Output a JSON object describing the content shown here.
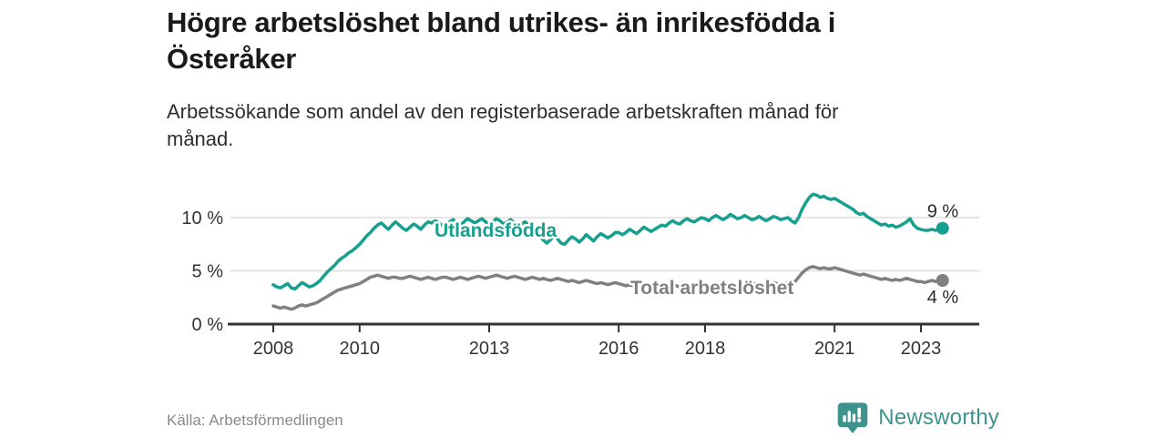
{
  "title_lines": [
    "Högre arbetslöshet bland utrikes- än inrikesfödda i",
    "Österåker"
  ],
  "subtitle_lines": [
    "Arbetssökande som andel av den registerbaserade arbetskraften månad för",
    "månad."
  ],
  "footer": {
    "source": "Källa: Arbetsförmedlingen",
    "brand": "Newsworthy",
    "logo_icon": "bar-chart-speech-bubble-icon"
  },
  "colors": {
    "accent_teal": "#17A08F",
    "series_gray": "#808080",
    "grid": "#DDDDDD",
    "axis": "#333333",
    "title_text": "#1A1A1A",
    "muted_text": "#8A8A8A",
    "brand_teal": "#3E938D"
  },
  "chart_data": {
    "type": "line",
    "x_start": "2008-01",
    "x_end": "2023-07",
    "x_interval": "monthly",
    "xticks": [
      2008,
      2010,
      2013,
      2016,
      2018,
      2021,
      2023
    ],
    "yticks": [
      {
        "value": 0,
        "label": "0 %"
      },
      {
        "value": 5,
        "label": "5 %"
      },
      {
        "value": 10,
        "label": "10 %"
      }
    ],
    "ylim": [
      0,
      12.8
    ],
    "grid": "horizontal",
    "legend": "inline-labels",
    "series": [
      {
        "name": "Utlandsfödda",
        "color": "#17A08F",
        "end_label": "9 %",
        "end_value": 9.0,
        "values": [
          3.7,
          3.5,
          3.4,
          3.6,
          3.8,
          3.4,
          3.3,
          3.6,
          3.9,
          3.7,
          3.5,
          3.6,
          3.8,
          4.1,
          4.5,
          4.9,
          5.2,
          5.5,
          5.9,
          6.2,
          6.4,
          6.7,
          6.9,
          7.2,
          7.5,
          7.9,
          8.3,
          8.6,
          9.0,
          9.3,
          9.5,
          9.2,
          8.9,
          9.3,
          9.6,
          9.3,
          9.0,
          8.8,
          9.1,
          9.4,
          9.2,
          8.9,
          9.3,
          9.6,
          9.5,
          9.7,
          9.5,
          9.3,
          9.4,
          9.6,
          9.8,
          9.5,
          9.3,
          9.6,
          9.9,
          9.7,
          9.5,
          9.7,
          9.9,
          9.6,
          9.4,
          9.6,
          9.9,
          9.7,
          9.4,
          9.6,
          9.8,
          9.5,
          9.2,
          9.4,
          9.6,
          9.3,
          9.0,
          8.7,
          8.3,
          7.9,
          7.6,
          7.9,
          8.3,
          8.0,
          7.6,
          7.5,
          7.9,
          8.2,
          8.0,
          7.7,
          8.0,
          8.4,
          8.1,
          7.8,
          8.2,
          8.5,
          8.3,
          8.1,
          8.3,
          8.6,
          8.6,
          8.4,
          8.6,
          8.9,
          8.7,
          8.5,
          8.8,
          9.1,
          8.9,
          8.7,
          8.9,
          9.1,
          9.3,
          9.2,
          9.5,
          9.7,
          9.5,
          9.4,
          9.7,
          9.9,
          9.7,
          9.6,
          9.8,
          10.0,
          9.9,
          9.7,
          10.0,
          10.2,
          10.0,
          9.8,
          10.0,
          10.3,
          10.1,
          9.9,
          10.0,
          10.2,
          10.0,
          9.8,
          9.9,
          10.1,
          9.9,
          9.7,
          9.9,
          10.1,
          10.0,
          9.8,
          9.9,
          10.0,
          9.7,
          9.5,
          10.0,
          10.8,
          11.4,
          11.9,
          12.2,
          12.1,
          11.9,
          12.0,
          11.8,
          11.7,
          11.8,
          11.6,
          11.4,
          11.2,
          11.0,
          10.8,
          10.5,
          10.3,
          10.4,
          10.1,
          9.9,
          9.7,
          9.5,
          9.3,
          9.4,
          9.2,
          9.3,
          9.1,
          9.2,
          9.4,
          9.6,
          9.9,
          9.3,
          9.0,
          8.9,
          8.8,
          8.8,
          8.9,
          8.8,
          8.9,
          9.0
        ]
      },
      {
        "name": "Total arbetslöshet",
        "color": "#808080",
        "end_label": "4 %",
        "end_value": 4.1,
        "values": [
          1.7,
          1.6,
          1.5,
          1.6,
          1.5,
          1.4,
          1.5,
          1.7,
          1.8,
          1.7,
          1.8,
          1.9,
          2.0,
          2.2,
          2.4,
          2.6,
          2.8,
          3.0,
          3.2,
          3.3,
          3.4,
          3.5,
          3.6,
          3.7,
          3.8,
          4.0,
          4.2,
          4.4,
          4.5,
          4.6,
          4.5,
          4.4,
          4.3,
          4.4,
          4.4,
          4.3,
          4.3,
          4.4,
          4.5,
          4.4,
          4.3,
          4.2,
          4.3,
          4.4,
          4.3,
          4.2,
          4.3,
          4.4,
          4.4,
          4.3,
          4.2,
          4.3,
          4.4,
          4.3,
          4.2,
          4.3,
          4.4,
          4.5,
          4.4,
          4.3,
          4.4,
          4.5,
          4.6,
          4.5,
          4.4,
          4.3,
          4.4,
          4.5,
          4.4,
          4.3,
          4.2,
          4.3,
          4.4,
          4.3,
          4.2,
          4.3,
          4.2,
          4.1,
          4.2,
          4.3,
          4.2,
          4.1,
          4.0,
          4.1,
          4.0,
          3.9,
          4.0,
          4.1,
          4.0,
          3.9,
          3.8,
          3.9,
          3.8,
          3.7,
          3.8,
          3.9,
          3.8,
          3.7,
          3.6,
          3.7,
          3.6,
          3.5,
          3.6,
          3.7,
          3.6,
          3.5,
          3.6,
          3.7,
          3.6,
          3.5,
          3.6,
          3.7,
          3.6,
          3.5,
          3.6,
          3.7,
          3.6,
          3.5,
          3.6,
          3.7,
          3.6,
          3.5,
          3.6,
          3.7,
          3.6,
          3.5,
          3.6,
          3.7,
          3.6,
          3.5,
          3.6,
          3.7,
          3.6,
          3.7,
          3.8,
          3.7,
          3.8,
          3.7,
          3.8,
          3.9,
          3.8,
          3.7,
          3.8,
          3.9,
          3.9,
          4.0,
          4.4,
          4.8,
          5.1,
          5.3,
          5.4,
          5.3,
          5.2,
          5.3,
          5.2,
          5.2,
          5.3,
          5.2,
          5.1,
          5.0,
          4.9,
          4.8,
          4.7,
          4.6,
          4.7,
          4.6,
          4.5,
          4.4,
          4.3,
          4.2,
          4.3,
          4.2,
          4.1,
          4.2,
          4.1,
          4.2,
          4.3,
          4.2,
          4.1,
          4.0,
          4.0,
          3.9,
          4.0,
          4.1,
          4.0,
          4.1,
          4.1
        ]
      }
    ]
  }
}
